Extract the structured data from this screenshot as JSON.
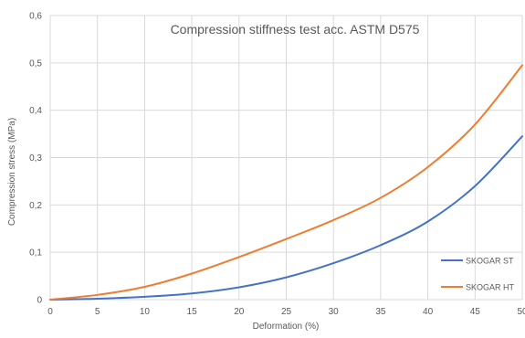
{
  "chart_data": {
    "type": "line",
    "title": "Compression  stiffness test acc. ASTM D575",
    "xlabel": "Deformation (%)",
    "ylabel": "Compression stress (MPa)",
    "xlim": [
      0,
      50
    ],
    "ylim": [
      0,
      0.6
    ],
    "x_ticks": [
      "0",
      "5",
      "10",
      "15",
      "20",
      "25",
      "30",
      "35",
      "40",
      "45",
      "50"
    ],
    "y_ticks": [
      "0",
      "0,1",
      "0,2",
      "0,3",
      "0,4",
      "0,5",
      "0,6"
    ],
    "grid": true,
    "legend_position": "bottom-right",
    "x": [
      0,
      5,
      10,
      15,
      20,
      25,
      30,
      35,
      40,
      45,
      50
    ],
    "series": [
      {
        "name": "SKOGAR ST",
        "color": "#4472C4",
        "values": [
          0,
          0.002,
          0.006,
          0.013,
          0.026,
          0.047,
          0.077,
          0.115,
          0.165,
          0.24,
          0.345
        ]
      },
      {
        "name": "SKOGAR HT",
        "color": "#ED7D31",
        "values": [
          0,
          0.01,
          0.027,
          0.055,
          0.09,
          0.128,
          0.168,
          0.215,
          0.28,
          0.37,
          0.495
        ]
      }
    ]
  }
}
